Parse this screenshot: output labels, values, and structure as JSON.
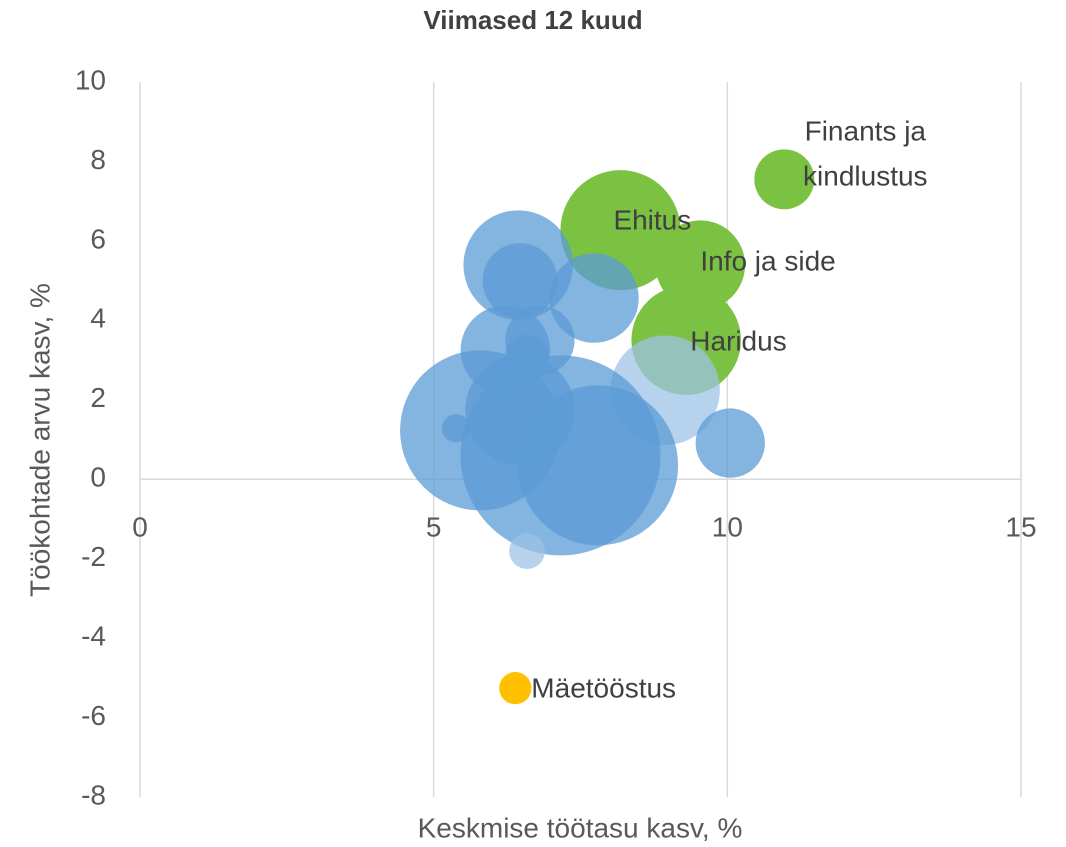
{
  "chart_data": {
    "type": "bubble",
    "title": "Viimased 12 kuud",
    "x_label": "Keskmise töötasu kasv, %",
    "y_label": "Töökohtade arvu kasv, %",
    "x": [
      10.97,
      8.18,
      9.54,
      9.3,
      6.39,
      6.44,
      6.47,
      7.73,
      6.22,
      6.81,
      6.59,
      8.94,
      10.05,
      5.79,
      5.38,
      6.47,
      7.16,
      7.8,
      6.59
    ],
    "values": [
      7.55,
      6.27,
      5.39,
      3.5,
      -5.26,
      5.39,
      5.0,
      4.56,
      3.25,
      3.5,
      3.07,
      2.24,
      0.91,
      1.23,
      1.28,
      1.74,
      0.6,
      0.35,
      -1.81
    ],
    "sizes": [
      9,
      36,
      20,
      30,
      2.6,
      30,
      14,
      20,
      20,
      12,
      5,
      30,
      12,
      64,
      2,
      30,
      100,
      64,
      3.2
    ],
    "colors": [
      "#7cc242",
      "#7cc242",
      "#7cc242",
      "#7cc242",
      "#ffc000",
      "#5b9bd5",
      "#5b9bd5",
      "#5b9bd5",
      "#5b9bd5",
      "#5b9bd5",
      "#5b9bd5",
      "#9dc3e6",
      "#5b9bd5",
      "#5b9bd5",
      "#5b9bd5",
      "#5b9bd5",
      "#5b9bd5",
      "#5b9bd5",
      "#9dc3e6"
    ],
    "labels": [
      [
        "Finants ja",
        "kindlustus"
      ],
      [
        "Ehitus"
      ],
      [
        "Info ja side"
      ],
      [
        "Haridus"
      ],
      [
        "Mäetööstus"
      ],
      null,
      null,
      null,
      null,
      null,
      null,
      null,
      null,
      null,
      null,
      null,
      null,
      null,
      null
    ],
    "xlim": [
      0,
      15
    ],
    "xticks": [
      0,
      5,
      10,
      15
    ],
    "ylim": [
      -8,
      10
    ],
    "yticks": [
      -8,
      -6,
      -4,
      -2,
      0,
      2,
      4,
      6,
      8,
      10
    ],
    "grid": true
  }
}
